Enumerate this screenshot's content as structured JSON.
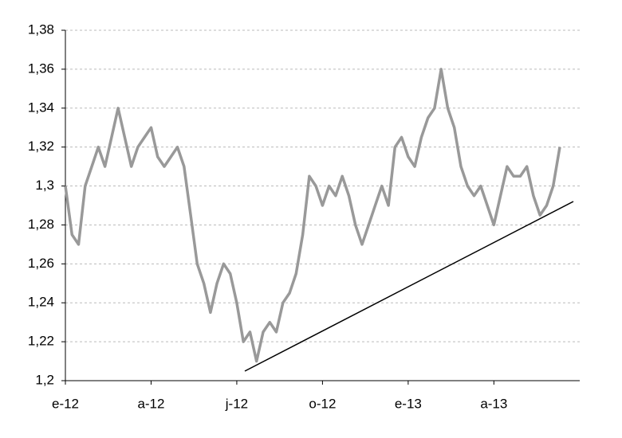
{
  "chart_data": {
    "type": "line",
    "categories": [
      "e-12",
      null,
      null,
      null,
      null,
      null,
      null,
      null,
      null,
      null,
      null,
      null,
      null,
      "a-12",
      null,
      null,
      null,
      null,
      null,
      null,
      null,
      null,
      null,
      null,
      null,
      null,
      "j-12",
      null,
      null,
      null,
      null,
      null,
      null,
      null,
      null,
      null,
      null,
      null,
      null,
      "o-12",
      null,
      null,
      null,
      null,
      null,
      null,
      null,
      null,
      null,
      null,
      null,
      null,
      "e-13",
      null,
      null,
      null,
      null,
      null,
      null,
      null,
      null,
      null,
      null,
      null,
      null,
      "a-13",
      null,
      null,
      null,
      null,
      null,
      null,
      null,
      null,
      null,
      null
    ],
    "values": [
      1.3,
      1.275,
      1.27,
      1.3,
      1.31,
      1.32,
      1.31,
      1.325,
      1.34,
      1.325,
      1.31,
      1.32,
      1.325,
      1.33,
      1.315,
      1.31,
      1.315,
      1.32,
      1.31,
      1.285,
      1.26,
      1.25,
      1.235,
      1.25,
      1.26,
      1.255,
      1.24,
      1.22,
      1.225,
      1.21,
      1.225,
      1.23,
      1.225,
      1.24,
      1.245,
      1.255,
      1.275,
      1.305,
      1.3,
      1.29,
      1.3,
      1.295,
      1.305,
      1.295,
      1.28,
      1.27,
      1.28,
      1.29,
      1.3,
      1.29,
      1.32,
      1.325,
      1.315,
      1.31,
      1.325,
      1.335,
      1.34,
      1.36,
      1.34,
      1.33,
      1.31,
      1.3,
      1.295,
      1.3,
      1.29,
      1.28,
      1.295,
      1.31,
      1.305,
      1.305,
      1.31,
      1.295,
      1.285,
      1.29,
      1.3,
      1.32
    ],
    "color": "#999999",
    "ylim": [
      1.2,
      1.38
    ],
    "yticks": [
      {
        "value": 1.2,
        "label": "1,2"
      },
      {
        "value": 1.22,
        "label": "1,22"
      },
      {
        "value": 1.24,
        "label": "1,24"
      },
      {
        "value": 1.26,
        "label": "1,26"
      },
      {
        "value": 1.28,
        "label": "1,28"
      },
      {
        "value": 1.3,
        "label": "1,3"
      },
      {
        "value": 1.32,
        "label": "1,32"
      },
      {
        "value": 1.34,
        "label": "1,34"
      },
      {
        "value": 1.36,
        "label": "1,36"
      },
      {
        "value": 1.38,
        "label": "1,38"
      }
    ],
    "grid": true
  }
}
